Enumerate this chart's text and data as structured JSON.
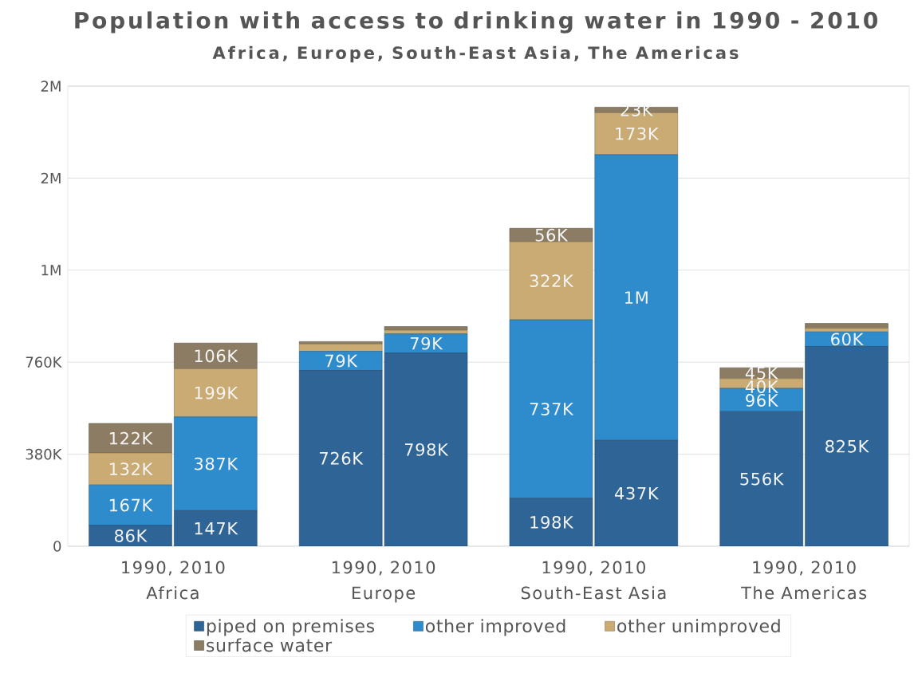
{
  "chart_data": {
    "type": "bar",
    "stacked": true,
    "title": "Population with access to drinking water in 1990 - 2010",
    "subtitle": "Africa, Europe, South-East Asia, The Americas",
    "categories": [
      null,
      null,
      null,
      null,
      null,
      null,
      null,
      null
    ],
    "annotations": [
      "1990, 2010",
      "Africa",
      "1990, 2010",
      "Europe",
      "1990, 2010",
      "South-East Asia",
      "1990, 2010",
      "The Americas"
    ],
    "series": [
      {
        "name": "piped on premises",
        "color": "#2e6496",
        "values": [
          86000,
          147000,
          726000,
          798000,
          198000,
          437000,
          556000,
          825000
        ],
        "value_labels": [
          "86K",
          "147K",
          "726K",
          "798K",
          "198K",
          "437K",
          "556K",
          "825K"
        ]
      },
      {
        "name": "other improved",
        "color": "#2f8ccc",
        "values": [
          167000,
          387000,
          79000,
          79000,
          737000,
          1180000,
          96000,
          60000
        ],
        "value_labels": [
          "167K",
          "387K",
          "79K",
          "79K",
          "737K",
          "1M",
          "96K",
          "60K"
        ]
      },
      {
        "name": "other unimproved",
        "color": "#c9ab73",
        "values": [
          132000,
          199000,
          30000,
          15000,
          322000,
          173000,
          40000,
          15000
        ],
        "value_labels": [
          "132K",
          "199K",
          null,
          null,
          "322K",
          "173K",
          "40K",
          null
        ]
      },
      {
        "name": "surface water",
        "color": "#8b7c63",
        "values": [
          122000,
          106000,
          10000,
          15000,
          56000,
          23000,
          45000,
          20000
        ],
        "value_labels": [
          "122K",
          "106K",
          null,
          null,
          "56K",
          "23K",
          "45K",
          null
        ]
      }
    ],
    "ylim": [
      0,
      1900000
    ],
    "yticks": [
      0,
      {
        "value": 380000,
        "label": "380K"
      },
      {
        "value": 760000,
        "label": "760K"
      },
      {
        "value": 1140000,
        "label": "1M"
      },
      {
        "value": 1520000,
        "label": "2M"
      },
      {
        "value": 1900000,
        "label": "2M"
      }
    ],
    "grid": "y",
    "legend": "bottom"
  }
}
